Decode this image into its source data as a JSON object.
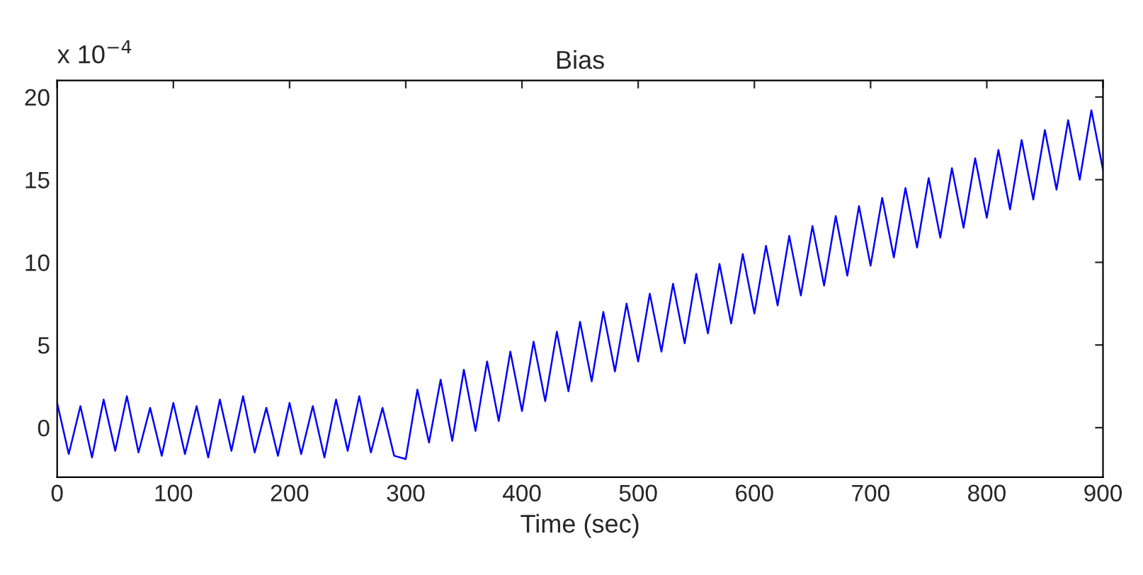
{
  "chart_data": {
    "type": "line",
    "title": "Bias",
    "xlabel": "Time (sec)",
    "annotations": [
      "x 10$^{−4}$"
    ],
    "x": [
      0,
      10,
      20,
      30,
      40,
      50,
      60,
      70,
      80,
      90,
      100,
      110,
      120,
      130,
      140,
      150,
      160,
      170,
      180,
      190,
      200,
      210,
      220,
      230,
      240,
      250,
      260,
      270,
      280,
      290,
      300,
      310,
      320,
      330,
      340,
      350,
      360,
      370,
      380,
      390,
      400,
      410,
      420,
      430,
      440,
      450,
      460,
      470,
      480,
      490,
      500,
      510,
      520,
      530,
      540,
      550,
      560,
      570,
      580,
      590,
      600,
      610,
      620,
      630,
      640,
      650,
      660,
      670,
      680,
      690,
      700,
      710,
      720,
      730,
      740,
      750,
      760,
      770,
      780,
      790,
      800,
      810,
      820,
      830,
      840,
      850,
      860,
      870,
      880,
      890,
      900
    ],
    "series": [
      {
        "color": "#0000ff",
        "values": [
          1.5,
          -1.6,
          1.3,
          -1.8,
          1.7,
          -1.4,
          1.9,
          -1.5,
          1.2,
          -1.7,
          1.5,
          -1.6,
          1.3,
          -1.8,
          1.7,
          -1.4,
          1.9,
          -1.5,
          1.2,
          -1.7,
          1.5,
          -1.6,
          1.3,
          -1.8,
          1.7,
          -1.4,
          1.9,
          -1.5,
          1.2,
          -1.7,
          -1.9,
          2.3,
          -0.9,
          2.9,
          -0.8,
          3.5,
          -0.2,
          4.0,
          0.4,
          4.6,
          1.0,
          5.2,
          1.6,
          5.8,
          2.2,
          6.4,
          2.8,
          7.0,
          3.4,
          7.5,
          4.0,
          8.1,
          4.6,
          8.7,
          5.1,
          9.3,
          5.7,
          9.9,
          6.3,
          10.5,
          6.9,
          11.0,
          7.4,
          11.6,
          8.0,
          12.2,
          8.6,
          12.8,
          9.2,
          13.4,
          9.8,
          13.9,
          10.3,
          14.5,
          10.9,
          15.1,
          11.5,
          15.7,
          12.1,
          16.3,
          12.7,
          16.8,
          13.2,
          17.4,
          13.8,
          18.0,
          14.4,
          18.6,
          15.0,
          19.2,
          15.6
        ]
      }
    ],
    "xlim": [
      0,
      900
    ],
    "xticks": [
      0,
      100,
      200,
      300,
      400,
      500,
      600,
      700,
      800,
      900
    ],
    "ylim": [
      -3,
      21
    ],
    "yticks": [
      0,
      5,
      10,
      15,
      20
    ],
    "grid": false,
    "legend": false,
    "marker": "none",
    "line_style": "solid"
  }
}
